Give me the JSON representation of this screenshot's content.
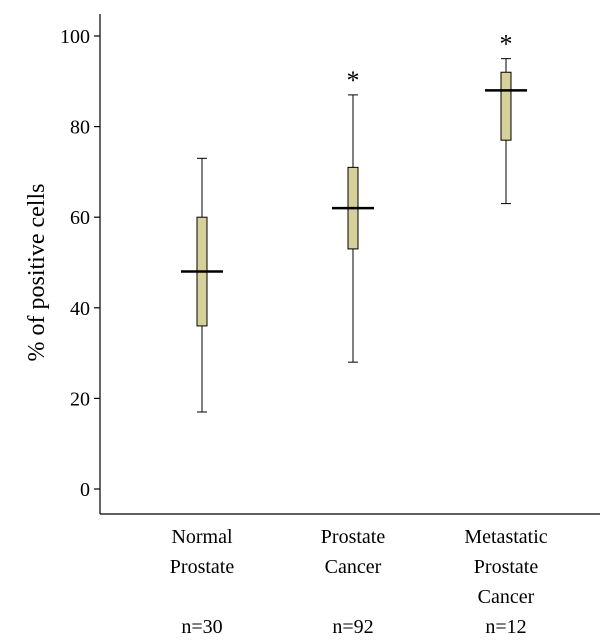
{
  "chart_data": {
    "type": "box",
    "ylabel": "% of positive cells",
    "ylim": [
      0,
      100
    ],
    "yticks": [
      0,
      20,
      40,
      60,
      80,
      100
    ],
    "grid": false,
    "box_color": "#d6d09a",
    "groups": [
      {
        "label_lines": [
          "Normal",
          "Prostate"
        ],
        "n_label": "n=30",
        "whisker_low": 17,
        "q1": 36,
        "median": 48,
        "q3": 60,
        "whisker_high": 73,
        "annotation": ""
      },
      {
        "label_lines": [
          "Prostate",
          "Cancer"
        ],
        "n_label": "n=92",
        "whisker_low": 28,
        "q1": 53,
        "median": 62,
        "q3": 71,
        "whisker_high": 87,
        "annotation": "*"
      },
      {
        "label_lines": [
          "Metastatic",
          "Prostate",
          "Cancer"
        ],
        "n_label": "n=12",
        "whisker_low": 63,
        "q1": 77,
        "median": 88,
        "q3": 92,
        "whisker_high": 95,
        "annotation": "*"
      }
    ]
  }
}
